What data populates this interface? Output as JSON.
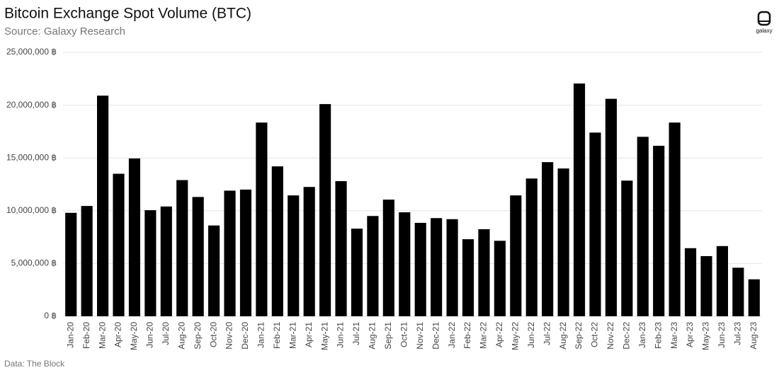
{
  "chart_data": {
    "type": "bar",
    "title": "Bitcoin Exchange Spot Volume (BTC)",
    "subtitle": "Source: Galaxy Research",
    "footer": "Data: The Block",
    "logo": "galaxy",
    "color": "#000000",
    "grid": true,
    "categories": [
      "Jan-20",
      "Feb-20",
      "Mar-20",
      "Apr-20",
      "May-20",
      "Jun-20",
      "Jul-20",
      "Aug-20",
      "Sep-20",
      "Oct-20",
      "Nov-20",
      "Dec-20",
      "Jan-21",
      "Feb-21",
      "Mar-21",
      "Apr-21",
      "May-21",
      "Jun-21",
      "Jul-21",
      "Aug-21",
      "Sep-21",
      "Oct-21",
      "Nov-21",
      "Dec-21",
      "Jan-22",
      "Feb-22",
      "Mar-22",
      "Apr-22",
      "May-22",
      "Jun-22",
      "Jul-22",
      "Aug-22",
      "Sep-22",
      "Oct-22",
      "Nov-22",
      "Dec-22",
      "Jan-23",
      "Feb-23",
      "Mar-23",
      "Apr-23",
      "May-23",
      "Jun-23",
      "Jul-23",
      "Aug-23"
    ],
    "values": [
      9800000,
      10450000,
      20900000,
      13500000,
      14950000,
      10050000,
      10400000,
      12900000,
      11300000,
      8600000,
      11900000,
      12000000,
      18350000,
      14200000,
      11450000,
      12250000,
      20100000,
      12800000,
      8300000,
      9500000,
      11050000,
      9850000,
      8850000,
      9300000,
      9200000,
      7300000,
      8250000,
      7150000,
      11450000,
      13050000,
      14600000,
      14000000,
      22050000,
      17400000,
      20600000,
      12850000,
      17000000,
      16150000,
      18350000,
      6450000,
      5700000,
      6650000,
      4600000,
      3500000
    ],
    "ylim": [
      0,
      25000000
    ],
    "yticks": [
      {
        "value": 0,
        "label": "0 ฿"
      },
      {
        "value": 5000000,
        "label": "5,000,000 ฿"
      },
      {
        "value": 10000000,
        "label": "10,000,000 ฿"
      },
      {
        "value": 15000000,
        "label": "15,000,000 ฿"
      },
      {
        "value": 20000000,
        "label": "20,000,000 ฿"
      },
      {
        "value": 25000000,
        "label": "25,000,000 ฿"
      }
    ]
  }
}
